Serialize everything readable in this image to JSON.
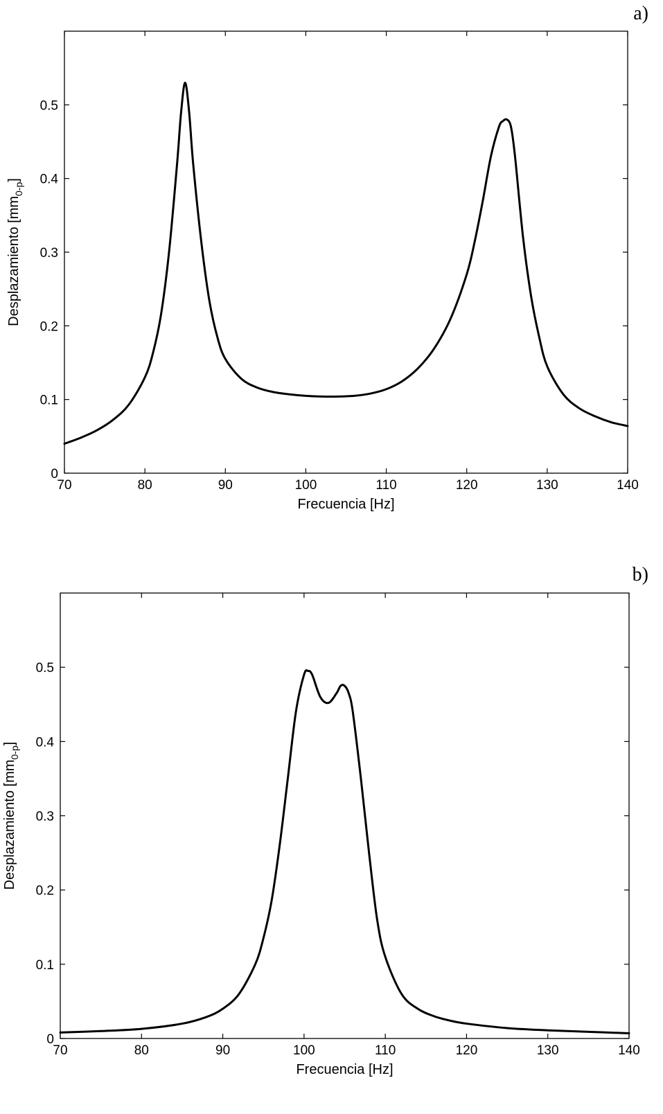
{
  "chart_data": [
    {
      "type": "line",
      "panel_label": "a)",
      "xlabel": "Frecuencia [Hz]",
      "ylabel_main": "Desplazamiento  [mm",
      "ylabel_sub": "0-p",
      "ylabel_end": "]",
      "xlim": [
        70,
        140
      ],
      "ylim": [
        0,
        0.6
      ],
      "xticks": [
        70,
        80,
        90,
        100,
        110,
        120,
        130,
        140
      ],
      "yticks": [
        0,
        0.1,
        0.2,
        0.3,
        0.4,
        0.5
      ],
      "ytick_labels": [
        "0",
        "0.1",
        "0.2",
        "0.3",
        "0.4",
        "0.5"
      ],
      "grid": false,
      "series": [
        {
          "x": [
            70,
            72,
            74,
            76,
            78,
            80,
            81,
            82,
            83,
            84,
            84.5,
            85,
            85.5,
            86,
            87,
            88,
            89,
            90,
            92,
            94,
            96,
            98,
            100,
            102,
            104,
            106,
            108,
            110,
            112,
            114,
            116,
            118,
            120,
            121,
            122,
            123,
            124,
            124.5,
            125,
            125.5,
            126,
            127,
            128,
            129,
            130,
            132,
            134,
            136,
            138,
            140
          ],
          "y": [
            0.04,
            0.048,
            0.058,
            0.072,
            0.093,
            0.13,
            0.163,
            0.215,
            0.3,
            0.42,
            0.49,
            0.53,
            0.49,
            0.42,
            0.315,
            0.235,
            0.185,
            0.155,
            0.128,
            0.116,
            0.11,
            0.107,
            0.105,
            0.104,
            0.104,
            0.105,
            0.108,
            0.114,
            0.125,
            0.143,
            0.17,
            0.21,
            0.27,
            0.315,
            0.37,
            0.43,
            0.47,
            0.478,
            0.48,
            0.47,
            0.43,
            0.32,
            0.24,
            0.185,
            0.145,
            0.107,
            0.088,
            0.077,
            0.069,
            0.064
          ]
        }
      ]
    },
    {
      "type": "line",
      "panel_label": "b)",
      "xlabel": "Frecuencia [Hz]",
      "ylabel_main": "Desplazamiento  [mm",
      "ylabel_sub": "0-p",
      "ylabel_end": "]",
      "xlim": [
        70,
        140
      ],
      "ylim": [
        0,
        0.6
      ],
      "xticks": [
        70,
        80,
        90,
        100,
        110,
        120,
        130,
        140
      ],
      "yticks": [
        0,
        0.1,
        0.2,
        0.3,
        0.4,
        0.5
      ],
      "ytick_labels": [
        "0",
        "0.1",
        "0.2",
        "0.3",
        "0.4",
        "0.5"
      ],
      "grid": false,
      "series": [
        {
          "x": [
            70,
            75,
            80,
            85,
            88,
            90,
            92,
            94,
            95,
            96,
            97,
            98,
            99,
            100,
            100.5,
            101,
            102,
            103,
            104,
            104.5,
            105,
            105.5,
            106,
            107,
            108,
            109,
            110,
            112,
            114,
            116,
            118,
            120,
            125,
            130,
            135,
            140
          ],
          "y": [
            0.008,
            0.01,
            0.013,
            0.02,
            0.029,
            0.04,
            0.06,
            0.1,
            0.135,
            0.185,
            0.26,
            0.35,
            0.44,
            0.49,
            0.495,
            0.49,
            0.46,
            0.452,
            0.465,
            0.475,
            0.475,
            0.465,
            0.44,
            0.35,
            0.25,
            0.16,
            0.11,
            0.06,
            0.04,
            0.03,
            0.024,
            0.02,
            0.014,
            0.011,
            0.009,
            0.007
          ]
        }
      ]
    }
  ]
}
